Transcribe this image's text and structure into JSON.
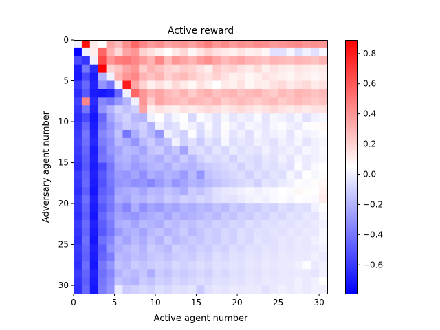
{
  "chart_data": {
    "type": "heatmap",
    "title": "Active reward",
    "xlabel": "Active agent number",
    "ylabel": "Adversary agent number",
    "n_cols": 31,
    "n_rows": 31,
    "xlim": [
      0,
      31
    ],
    "ylim": [
      31,
      0
    ],
    "x_ticks": [
      0,
      5,
      10,
      15,
      20,
      25,
      30
    ],
    "y_ticks": [
      0,
      5,
      10,
      15,
      20,
      25,
      30
    ],
    "colorscale": {
      "name": "bwr",
      "vmin": -0.79,
      "vmax": 0.89,
      "low_color": "#0000ff",
      "mid_color": "#ffffff",
      "high_color": "#ff0000"
    },
    "colorbar_ticks": [
      -0.6,
      -0.4,
      -0.2,
      0.0,
      0.2,
      0.4,
      0.6,
      0.8
    ],
    "colorbar_tick_labels": [
      "−0.6",
      "−0.4",
      "−0.2",
      "0.0",
      "0.2",
      "0.4",
      "0.6",
      "0.8"
    ],
    "values": [
      [
        0.0,
        0.85,
        0.12,
        0.05,
        0.35,
        0.28,
        0.42,
        0.55,
        0.45,
        0.38,
        0.42,
        0.35,
        0.38,
        0.4,
        0.36,
        0.42,
        0.48,
        0.4,
        0.44,
        0.38,
        0.42,
        0.4,
        0.44,
        0.42,
        0.38,
        0.4,
        0.42,
        0.44,
        0.4,
        0.42,
        0.4
      ],
      [
        -0.78,
        0.0,
        0.1,
        0.55,
        0.3,
        0.18,
        0.35,
        0.4,
        0.2,
        0.15,
        0.1,
        0.05,
        0.12,
        0.18,
        0.08,
        0.14,
        0.2,
        0.15,
        0.12,
        0.1,
        0.14,
        0.1,
        0.12,
        0.08,
        -0.05,
        -0.05,
        0.02,
        -0.06,
        0.0,
        -0.05,
        0.02
      ],
      [
        -0.55,
        -0.62,
        0.0,
        0.65,
        0.4,
        0.48,
        0.5,
        0.45,
        0.38,
        0.3,
        0.45,
        0.28,
        0.4,
        0.35,
        0.3,
        0.38,
        0.42,
        0.35,
        0.28,
        0.32,
        0.35,
        0.3,
        0.28,
        0.25,
        0.3,
        0.28,
        0.26,
        0.3,
        0.28,
        0.25,
        0.3
      ],
      [
        -0.7,
        -0.4,
        -0.65,
        0.89,
        0.2,
        0.25,
        0.35,
        0.4,
        0.22,
        0.3,
        0.25,
        0.2,
        0.18,
        0.22,
        0.2,
        0.15,
        0.1,
        0.22,
        0.18,
        0.2,
        0.15,
        0.12,
        0.18,
        0.1,
        0.15,
        0.12,
        0.1,
        0.14,
        0.12,
        0.1,
        0.12
      ],
      [
        -0.72,
        -0.55,
        -0.7,
        -0.2,
        0.0,
        0.3,
        0.4,
        0.45,
        0.3,
        0.25,
        0.3,
        0.2,
        0.25,
        0.28,
        0.22,
        0.18,
        0.15,
        0.2,
        0.15,
        0.1,
        0.12,
        0.08,
        0.1,
        0.15,
        0.12,
        0.1,
        0.08,
        0.12,
        0.1,
        0.08,
        0.1
      ],
      [
        -0.6,
        -0.45,
        -0.68,
        -0.3,
        -0.4,
        0.0,
        0.8,
        0.35,
        0.2,
        0.1,
        0.15,
        0.1,
        0.18,
        0.12,
        0.08,
        0.15,
        0.1,
        0.05,
        0.12,
        0.1,
        0.15,
        0.08,
        0.12,
        0.1,
        0.15,
        0.18,
        0.12,
        0.15,
        0.18,
        0.12,
        0.15
      ],
      [
        -0.65,
        -0.5,
        -0.7,
        -0.72,
        -0.68,
        -0.45,
        0.0,
        0.55,
        0.4,
        0.3,
        0.35,
        0.28,
        0.25,
        0.3,
        0.22,
        0.28,
        0.32,
        0.25,
        0.28,
        0.3,
        0.25,
        0.28,
        0.3,
        0.25,
        0.22,
        0.28,
        0.25,
        0.3,
        0.28,
        0.25,
        0.28
      ],
      [
        -0.58,
        0.45,
        -0.65,
        -0.35,
        -0.4,
        -0.3,
        -0.2,
        0.0,
        0.4,
        0.22,
        0.35,
        0.3,
        0.28,
        0.25,
        0.3,
        0.28,
        0.25,
        0.3,
        0.22,
        0.25,
        0.28,
        0.25,
        0.22,
        0.25,
        0.28,
        0.22,
        0.25,
        0.28,
        0.25,
        0.22,
        0.25
      ],
      [
        -0.62,
        -0.4,
        -0.68,
        -0.3,
        -0.2,
        -0.1,
        -0.15,
        -0.1,
        0.35,
        0.1,
        0.15,
        0.12,
        0.1,
        0.15,
        0.12,
        0.15,
        0.18,
        0.15,
        0.12,
        0.15,
        0.18,
        0.15,
        0.12,
        0.15,
        0.18,
        0.15,
        0.12,
        0.15,
        0.12,
        0.15,
        0.15
      ],
      [
        -0.65,
        -0.55,
        -0.72,
        -0.45,
        -0.25,
        -0.15,
        -0.1,
        -0.18,
        -0.2,
        0.0,
        0.05,
        -0.05,
        0.02,
        0.05,
        -0.08,
        0.04,
        0.0,
        -0.05,
        0.02,
        -0.04,
        0.0,
        -0.02,
        0.03,
        -0.04,
        0.02,
        0.0,
        -0.03,
        0.02,
        -0.05,
        0.0,
        0.02
      ],
      [
        -0.62,
        -0.45,
        -0.7,
        -0.4,
        -0.3,
        -0.2,
        -0.12,
        -0.15,
        -0.1,
        -0.2,
        0.0,
        -0.08,
        -0.05,
        0.04,
        0.0,
        -0.06,
        0.03,
        -0.05,
        0.06,
        0.0,
        -0.04,
        0.02,
        0.0,
        -0.03,
        0.02,
        0.04,
        0.0,
        -0.02,
        0.04,
        0.06,
        0.08
      ],
      [
        -0.6,
        -0.4,
        -0.68,
        -0.35,
        -0.28,
        -0.15,
        -0.4,
        -0.22,
        -0.12,
        -0.18,
        -0.3,
        0.0,
        -0.06,
        -0.1,
        0.04,
        -0.08,
        0.0,
        -0.05,
        0.03,
        -0.04,
        0.0,
        -0.06,
        0.02,
        -0.03,
        0.0,
        0.02,
        -0.04,
        0.03,
        0.0,
        0.02,
        0.04
      ],
      [
        -0.58,
        -0.42,
        -0.66,
        -0.38,
        -0.32,
        -0.18,
        -0.22,
        -0.3,
        -0.18,
        -0.12,
        -0.2,
        -0.15,
        0.0,
        -0.1,
        -0.05,
        -0.12,
        -0.04,
        -0.08,
        0.02,
        -0.06,
        -0.03,
        -0.05,
        0.0,
        -0.02,
        -0.05,
        0.0,
        -0.03,
        0.02,
        -0.04,
        0.0,
        0.02
      ],
      [
        -0.6,
        -0.45,
        -0.7,
        -0.42,
        -0.3,
        -0.25,
        -0.18,
        -0.2,
        -0.25,
        -0.15,
        -0.12,
        -0.2,
        -0.14,
        -0.25,
        -0.08,
        -0.06,
        -0.1,
        -0.04,
        -0.08,
        -0.02,
        -0.06,
        -0.03,
        -0.05,
        0.0,
        -0.04,
        -0.02,
        0.0,
        -0.03,
        0.02,
        0.0,
        0.03
      ],
      [
        -0.62,
        -0.48,
        -0.68,
        -0.4,
        -0.35,
        -0.22,
        -0.2,
        -0.25,
        -0.2,
        -0.18,
        -0.22,
        -0.15,
        -0.2,
        -0.12,
        -0.18,
        -0.1,
        -0.06,
        -0.08,
        -0.05,
        -0.1,
        -0.04,
        -0.06,
        -0.08,
        -0.03,
        -0.05,
        0.0,
        -0.04,
        0.02,
        -0.02,
        0.0,
        0.02
      ],
      [
        -0.65,
        -0.5,
        -0.7,
        -0.55,
        -0.4,
        -0.25,
        -0.22,
        -0.28,
        -0.25,
        -0.2,
        -0.18,
        -0.22,
        -0.15,
        -0.18,
        -0.2,
        -0.15,
        -0.12,
        -0.1,
        -0.08,
        -0.06,
        -0.1,
        -0.05,
        -0.08,
        -0.04,
        -0.06,
        -0.03,
        -0.05,
        0.04,
        -0.02,
        0.03,
        0.05
      ],
      [
        -0.6,
        -0.46,
        -0.68,
        -0.5,
        -0.38,
        -0.28,
        -0.3,
        -0.25,
        -0.32,
        -0.22,
        -0.25,
        -0.2,
        -0.22,
        -0.28,
        -0.18,
        -0.3,
        -0.15,
        -0.12,
        -0.1,
        -0.08,
        -0.06,
        -0.1,
        -0.05,
        -0.08,
        -0.04,
        -0.06,
        0.02,
        -0.03,
        0.05,
        0.02,
        0.06
      ],
      [
        -0.62,
        -0.44,
        -0.7,
        -0.52,
        -0.4,
        -0.3,
        -0.28,
        -0.32,
        -0.3,
        -0.35,
        -0.28,
        -0.22,
        -0.3,
        -0.25,
        -0.2,
        -0.22,
        -0.18,
        -0.15,
        -0.12,
        -0.1,
        -0.08,
        -0.06,
        -0.1,
        -0.04,
        -0.06,
        -0.02,
        0.0,
        0.04,
        0.03,
        0.06,
        0.08
      ],
      [
        -0.64,
        -0.48,
        -0.72,
        -0.48,
        -0.42,
        -0.25,
        -0.22,
        -0.2,
        -0.25,
        -0.18,
        -0.2,
        -0.15,
        -0.18,
        -0.22,
        -0.12,
        -0.15,
        -0.1,
        -0.05,
        -0.03,
        -0.02,
        0.0,
        0.02,
        0.0,
        0.02,
        0.03,
        0.05,
        0.04,
        0.08,
        0.06,
        0.05,
        0.1
      ],
      [
        -0.6,
        -0.42,
        -0.68,
        -0.45,
        -0.38,
        -0.22,
        -0.25,
        -0.18,
        -0.2,
        -0.15,
        -0.18,
        -0.12,
        -0.15,
        -0.1,
        -0.12,
        -0.08,
        -0.1,
        -0.06,
        -0.04,
        -0.05,
        -0.02,
        0.0,
        0.02,
        0.0,
        0.03,
        0.04,
        0.02,
        0.05,
        0.04,
        0.03,
        0.12
      ],
      [
        -0.62,
        -0.46,
        -0.7,
        -0.5,
        -0.4,
        -0.28,
        -0.35,
        -0.22,
        -0.32,
        -0.25,
        -0.28,
        -0.22,
        -0.25,
        -0.2,
        -0.22,
        -0.18,
        -0.2,
        -0.15,
        -0.18,
        -0.12,
        -0.15,
        -0.1,
        -0.12,
        -0.08,
        -0.1,
        -0.06,
        -0.08,
        -0.05,
        -0.06,
        0.0,
        0.04
      ],
      [
        -0.64,
        -0.48,
        -0.72,
        -0.45,
        -0.35,
        -0.25,
        -0.28,
        -0.3,
        -0.25,
        -0.22,
        -0.2,
        -0.25,
        -0.18,
        -0.22,
        -0.2,
        -0.18,
        -0.15,
        -0.18,
        -0.12,
        -0.15,
        -0.1,
        -0.12,
        -0.08,
        -0.1,
        -0.06,
        -0.08,
        -0.04,
        -0.06,
        -0.03,
        -0.04,
        0.02
      ],
      [
        -0.6,
        -0.44,
        -0.68,
        -0.48,
        -0.38,
        -0.22,
        -0.2,
        -0.25,
        -0.18,
        -0.2,
        -0.22,
        -0.15,
        -0.18,
        -0.14,
        -0.16,
        -0.12,
        -0.14,
        -0.1,
        -0.12,
        -0.08,
        -0.1,
        -0.06,
        -0.08,
        -0.05,
        -0.06,
        -0.04,
        -0.05,
        -0.03,
        -0.04,
        -0.02,
        0.0
      ],
      [
        -0.62,
        -0.46,
        -0.7,
        -0.5,
        -0.4,
        -0.28,
        -0.22,
        -0.2,
        -0.25,
        -0.18,
        -0.15,
        -0.2,
        -0.16,
        -0.12,
        -0.18,
        -0.14,
        -0.1,
        -0.12,
        -0.08,
        -0.1,
        -0.06,
        -0.08,
        -0.05,
        -0.06,
        -0.04,
        -0.05,
        -0.03,
        -0.04,
        -0.02,
        -0.03,
        0.02
      ],
      [
        -0.64,
        -0.42,
        -0.72,
        -0.42,
        -0.35,
        -0.2,
        -0.25,
        -0.18,
        -0.22,
        -0.15,
        -0.2,
        -0.12,
        -0.18,
        -0.15,
        -0.12,
        -0.14,
        -0.1,
        -0.12,
        -0.08,
        -0.1,
        -0.06,
        -0.08,
        -0.04,
        -0.06,
        -0.05,
        -0.03,
        -0.04,
        -0.02,
        -0.03,
        0.0,
        0.02
      ],
      [
        -0.6,
        -0.45,
        -0.68,
        -0.48,
        -0.3,
        -0.22,
        -0.18,
        -0.15,
        -0.2,
        -0.12,
        -0.15,
        -0.18,
        -0.1,
        -0.12,
        -0.14,
        -0.1,
        -0.12,
        -0.08,
        -0.1,
        -0.06,
        -0.08,
        -0.05,
        -0.06,
        -0.04,
        -0.05,
        -0.03,
        -0.04,
        -0.02,
        -0.03,
        -0.02,
        0.0
      ],
      [
        -0.62,
        -0.47,
        -0.7,
        -0.45,
        -0.38,
        -0.18,
        -0.2,
        -0.16,
        -0.18,
        -0.14,
        -0.12,
        -0.15,
        -0.12,
        -0.1,
        -0.12,
        -0.08,
        -0.1,
        -0.06,
        -0.08,
        -0.05,
        -0.06,
        -0.04,
        -0.05,
        -0.03,
        -0.04,
        -0.02,
        -0.03,
        -0.02,
        -0.02,
        0.0,
        -0.02
      ],
      [
        -0.64,
        -0.43,
        -0.72,
        -0.4,
        -0.3,
        -0.15,
        -0.18,
        -0.12,
        -0.15,
        -0.12,
        -0.1,
        -0.12,
        -0.08,
        -0.1,
        -0.08,
        -0.06,
        -0.08,
        -0.05,
        -0.06,
        -0.04,
        -0.05,
        -0.03,
        -0.04,
        -0.02,
        -0.03,
        -0.02,
        -0.02,
        0.0,
        0.04,
        -0.02,
        0.0
      ],
      [
        -0.6,
        -0.46,
        -0.68,
        -0.42,
        -0.35,
        -0.2,
        -0.15,
        -0.18,
        -0.14,
        -0.22,
        -0.12,
        -0.15,
        -0.1,
        -0.12,
        -0.1,
        -0.08,
        -0.1,
        -0.06,
        -0.08,
        -0.05,
        -0.06,
        -0.04,
        -0.05,
        -0.03,
        -0.04,
        -0.02,
        -0.03,
        -0.02,
        -0.02,
        -0.04,
        0.0
      ],
      [
        -0.62,
        -0.48,
        -0.7,
        -0.4,
        -0.32,
        -0.15,
        -0.18,
        -0.2,
        -0.12,
        -0.15,
        -0.1,
        -0.12,
        -0.08,
        -0.1,
        -0.08,
        -0.06,
        -0.08,
        -0.05,
        -0.06,
        -0.04,
        -0.05,
        -0.03,
        -0.04,
        -0.02,
        -0.03,
        -0.02,
        -0.02,
        0.0,
        -0.02,
        0.0,
        0.06
      ],
      [
        -0.64,
        -0.45,
        -0.72,
        -0.38,
        -0.3,
        -0.02,
        -0.12,
        -0.1,
        -0.08,
        -0.1,
        -0.06,
        -0.08,
        -0.05,
        -0.06,
        -0.04,
        -0.12,
        -0.05,
        -0.03,
        -0.04,
        -0.02,
        -0.03,
        -0.02,
        -0.02,
        -0.05,
        -0.02,
        0.0,
        -0.02,
        0.0,
        -0.02,
        0.0,
        0.0
      ]
    ]
  }
}
